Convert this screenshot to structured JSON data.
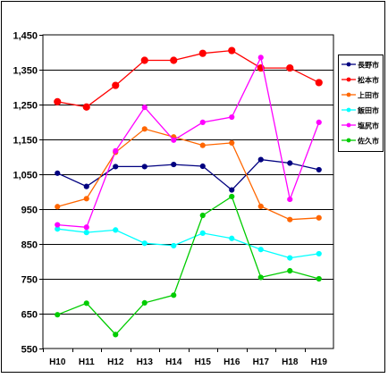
{
  "chart_data": {
    "type": "line",
    "categories": [
      "H10",
      "H11",
      "H12",
      "H13",
      "H14",
      "H15",
      "H16",
      "H17",
      "H18",
      "H19"
    ],
    "ylim": [
      550,
      1450
    ],
    "yticks": [
      550,
      650,
      750,
      850,
      950,
      1050,
      1150,
      1250,
      1350,
      1450
    ],
    "ytick_labels": [
      "550",
      "650",
      "750",
      "850",
      "950",
      "1,050",
      "1,150",
      "1,250",
      "1,350",
      "1,450"
    ],
    "grid": "horizontal",
    "legend": "right",
    "series": [
      {
        "name": "長野市",
        "color": "#000080",
        "marker": "circle",
        "values": [
          1053,
          1015,
          1072,
          1072,
          1078,
          1073,
          1005,
          1092,
          1082,
          1063
        ]
      },
      {
        "name": "松本市",
        "color": "#ff0000",
        "marker": "circle-large",
        "values": [
          1258,
          1243,
          1305,
          1377,
          1377,
          1397,
          1405,
          1355,
          1355,
          1313
        ]
      },
      {
        "name": "上田市",
        "color": "#ff6600",
        "marker": "circle",
        "values": [
          957,
          980,
          1113,
          1180,
          1157,
          1133,
          1140,
          958,
          920,
          925
        ]
      },
      {
        "name": "飯田市",
        "color": "#00ffff",
        "marker": "circle",
        "values": [
          893,
          883,
          890,
          852,
          845,
          881,
          866,
          834,
          810,
          822
        ]
      },
      {
        "name": "塩尻市",
        "color": "#ff00ff",
        "marker": "circle",
        "values": [
          905,
          898,
          1117,
          1242,
          1148,
          1199,
          1214,
          1385,
          978,
          1199
        ]
      },
      {
        "name": "佐久市",
        "color": "#00cc00",
        "marker": "circle",
        "values": [
          647,
          680,
          590,
          681,
          703,
          932,
          986,
          754,
          773,
          750
        ]
      }
    ]
  }
}
